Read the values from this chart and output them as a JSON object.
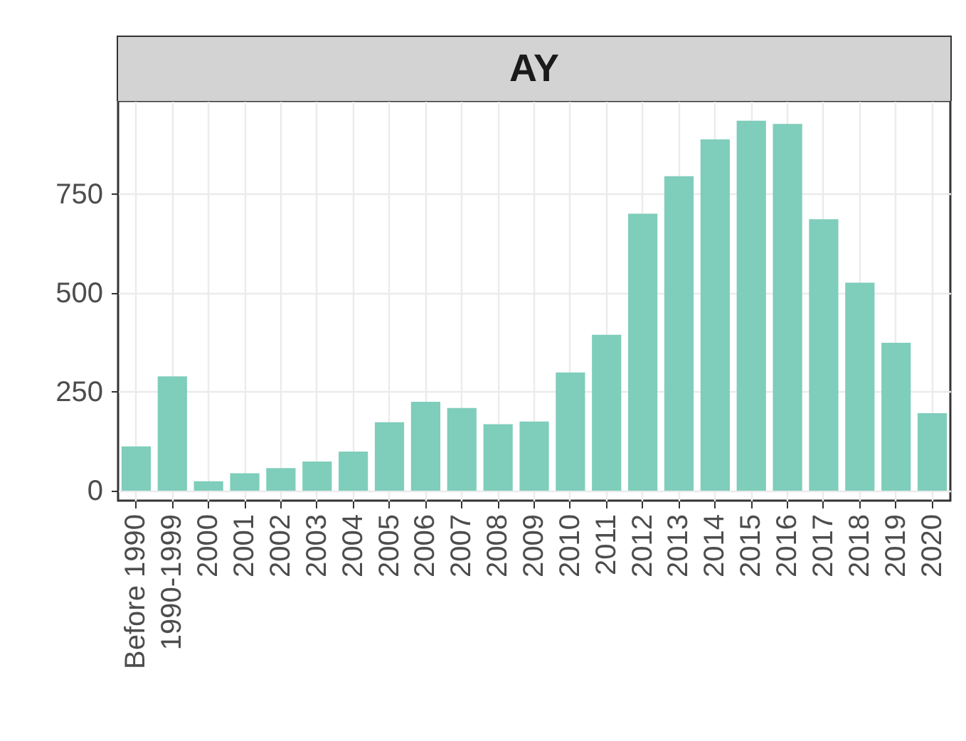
{
  "chart_data": {
    "type": "bar",
    "title": "AY",
    "categories": [
      "Before 1990",
      "1990-1999",
      "2000",
      "2001",
      "2002",
      "2003",
      "2004",
      "2005",
      "2006",
      "2007",
      "2008",
      "2009",
      "2010",
      "2011",
      "2012",
      "2013",
      "2014",
      "2015",
      "2016",
      "2017",
      "2018",
      "2019",
      "2020"
    ],
    "values": [
      112,
      289,
      24,
      44,
      57,
      74,
      99,
      173,
      225,
      209,
      168,
      175,
      299,
      394,
      700,
      795,
      888,
      935,
      927,
      686,
      526,
      374,
      196
    ],
    "color": "#7fcdbb",
    "ylim": [
      -25,
      985
    ],
    "yticks": [
      0,
      250,
      500,
      750
    ],
    "grid": true
  }
}
